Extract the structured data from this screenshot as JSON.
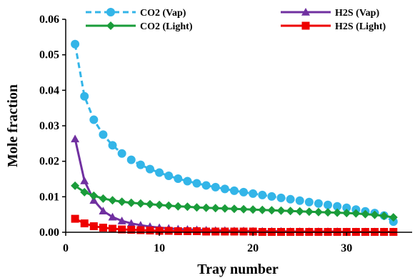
{
  "chart_data": {
    "type": "line",
    "xlabel": "Tray number",
    "ylabel": "Mole fraction",
    "xlim": [
      0,
      37
    ],
    "ylim": [
      0,
      0.06
    ],
    "xticks": [
      0,
      10,
      20,
      30
    ],
    "xtick_labels": [
      "0",
      "10",
      "20",
      "30"
    ],
    "yticks": [
      0,
      0.01,
      0.02,
      0.03,
      0.04,
      0.05,
      0.06
    ],
    "ytick_labels": [
      "0.00",
      "0.01",
      "0.02",
      "0.03",
      "0.04",
      "0.05",
      "0.06"
    ],
    "grid": false,
    "legend_position": "top",
    "x": [
      1,
      2,
      3,
      4,
      5,
      6,
      7,
      8,
      9,
      10,
      11,
      12,
      13,
      14,
      15,
      16,
      17,
      18,
      19,
      20,
      21,
      22,
      23,
      24,
      25,
      26,
      27,
      28,
      29,
      30,
      31,
      32,
      33,
      34,
      35
    ],
    "series": [
      {
        "name": "CO2 (Vap)",
        "color": "#33b5e8",
        "line_style": "dashed",
        "marker": "circle",
        "values": [
          0.053,
          0.0383,
          0.0317,
          0.0275,
          0.0245,
          0.0222,
          0.0204,
          0.019,
          0.0178,
          0.0168,
          0.0159,
          0.0151,
          0.0144,
          0.0138,
          0.0132,
          0.0127,
          0.0122,
          0.0117,
          0.0113,
          0.0109,
          0.0105,
          0.0101,
          0.0097,
          0.0093,
          0.0089,
          0.0085,
          0.0081,
          0.0077,
          0.0073,
          0.0069,
          0.0064,
          0.0059,
          0.0054,
          0.0047,
          0.003
        ]
      },
      {
        "name": "H2S (Vap)",
        "color": "#7030a0",
        "line_style": "solid",
        "marker": "triangle",
        "values": [
          0.0263,
          0.0145,
          0.009,
          0.006,
          0.0043,
          0.0032,
          0.0025,
          0.002,
          0.0016,
          0.0013,
          0.0011,
          0.0009,
          0.0008,
          0.0007,
          0.0006,
          0.0005,
          0.0005,
          0.0004,
          0.0004,
          0.0003,
          0.0003,
          0.0003,
          0.0003,
          0.0002,
          0.0002,
          0.0002,
          0.0002,
          0.0002,
          0.0002,
          0.0001,
          0.0001,
          0.0001,
          0.0001,
          0.0001,
          0.0001
        ]
      },
      {
        "name": "CO2 (Light)",
        "color": "#1a9c3a",
        "line_style": "solid",
        "marker": "diamond",
        "values": [
          0.0131,
          0.0113,
          0.0103,
          0.0095,
          0.009,
          0.0086,
          0.0083,
          0.0081,
          0.0079,
          0.0077,
          0.0075,
          0.0073,
          0.0072,
          0.007,
          0.0069,
          0.0068,
          0.0067,
          0.0066,
          0.0065,
          0.0064,
          0.0063,
          0.0062,
          0.0061,
          0.006,
          0.0059,
          0.0058,
          0.0057,
          0.0056,
          0.0055,
          0.0054,
          0.0053,
          0.0051,
          0.0049,
          0.0046,
          0.0042
        ]
      },
      {
        "name": "H2S (Light)",
        "color": "#ee0000",
        "line_style": "solid",
        "marker": "square",
        "values": [
          0.0038,
          0.0025,
          0.0017,
          0.0013,
          0.001,
          0.0008,
          0.0007,
          0.0006,
          0.0005,
          0.0004,
          0.0004,
          0.0003,
          0.0003,
          0.0003,
          0.0002,
          0.0002,
          0.0002,
          0.0002,
          0.0002,
          0.0002,
          0.0001,
          0.0001,
          0.0001,
          0.0001,
          0.0001,
          0.0001,
          0.0001,
          0.0001,
          0.0001,
          0.0001,
          0.0001,
          0.0001,
          0.0001,
          0.0001,
          0.0001
        ]
      }
    ]
  }
}
